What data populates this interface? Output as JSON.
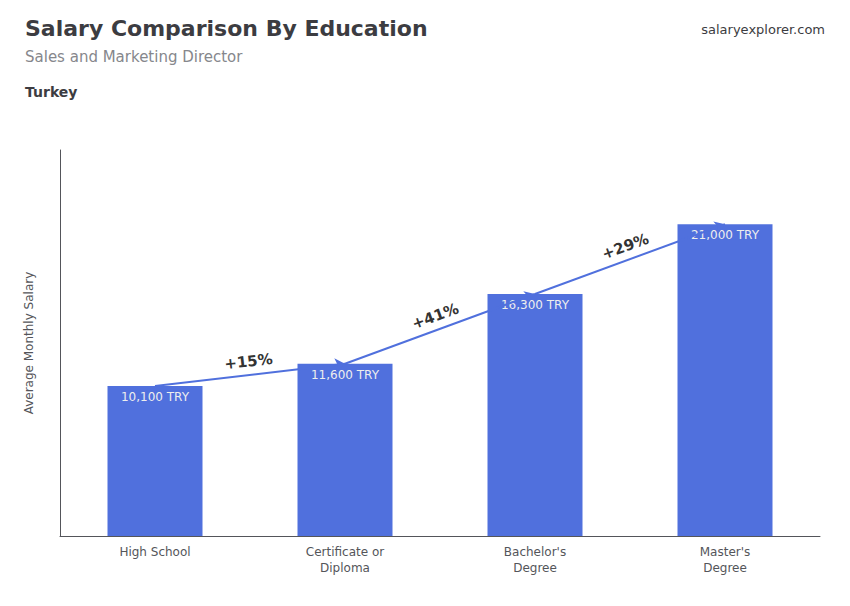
{
  "chart_data": {
    "type": "bar",
    "title": "Salary Comparison By Education",
    "subtitle": "Sales and Marketing Director",
    "annotations": [
      "Turkey",
      "salaryexplorer.com"
    ],
    "ylabel": "Average Monthly Salary",
    "categories": [
      "High School",
      "Certificate or\nDiploma",
      "Bachelor's\nDegree",
      "Master's\nDegree"
    ],
    "values": [
      10100,
      11600,
      16300,
      21000
    ],
    "value_labels": [
      "10,100 TRY",
      "11,600 TRY",
      "16,300 TRY",
      "21,000 TRY"
    ],
    "data_labels": true,
    "changes": [
      {
        "label": "+15%",
        "from": "High School",
        "to": "Certificate or\nDiploma"
      },
      {
        "label": "+41%",
        "from": "Certificate or\nDiploma",
        "to": "Bachelor's\nDegree"
      },
      {
        "label": "+29%",
        "from": "Bachelor's\nDegree",
        "to": "Master's\nDegree"
      }
    ],
    "ylim": [
      0,
      26000
    ],
    "grid": false,
    "tick_labels": "x"
  }
}
